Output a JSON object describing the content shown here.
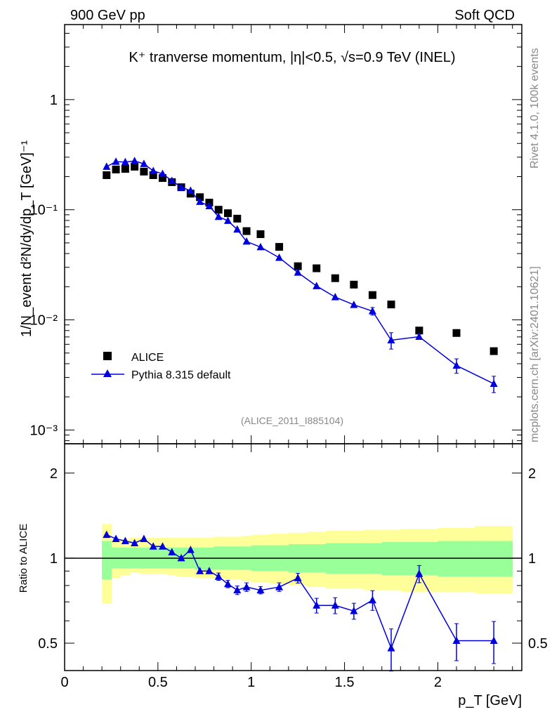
{
  "chart_data": {
    "type": "scatter",
    "header_left": "900 GeV pp",
    "header_right": "Soft QCD",
    "title": "K⁺ tranverse momentum, |η|<0.5, √s=0.9 TeV (INEL)",
    "side_text_top": "Rivet 4.1.0,  100k events",
    "side_text_bottom": "mcplots.cern.ch [arXiv:2401.10621]",
    "reference": "(ALICE_2011_I885104)",
    "ylabel": "1/N_event d²N/dy/dp_T [GeV]⁻¹",
    "ratio_ylabel": "Ratio to ALICE",
    "xlabel": "p_T [GeV]",
    "xlim": [
      0,
      2.45
    ],
    "ylim": [
      0.00075,
      4.8
    ],
    "yscale": "log",
    "ratio_ylim": [
      0.4,
      2.54
    ],
    "ratio_yscale": "log",
    "x_ticks": [
      "0",
      "0.5",
      "1",
      "1.5",
      "2"
    ],
    "x_tick_values": [
      0,
      0.5,
      1,
      1.5,
      2
    ],
    "y_ticks": [
      "1",
      "10⁻¹",
      "10⁻²",
      "10⁻³"
    ],
    "y_tick_values": [
      1,
      0.1,
      0.01,
      0.001
    ],
    "ratio_ticks": [
      "0.5",
      "1",
      "2"
    ],
    "ratio_tick_values": [
      0.5,
      1,
      2
    ],
    "legend_position": "bottom-left",
    "bin_edges": [
      0.2,
      0.25,
      0.3,
      0.35,
      0.4,
      0.45,
      0.5,
      0.55,
      0.6,
      0.65,
      0.7,
      0.75,
      0.8,
      0.85,
      0.9,
      0.95,
      1.0,
      1.1,
      1.2,
      1.3,
      1.4,
      1.5,
      1.6,
      1.7,
      1.8,
      2.0,
      2.2,
      2.4
    ],
    "x": [
      0.225,
      0.275,
      0.325,
      0.375,
      0.425,
      0.475,
      0.525,
      0.575,
      0.625,
      0.675,
      0.725,
      0.775,
      0.825,
      0.875,
      0.925,
      0.975,
      1.05,
      1.15,
      1.25,
      1.35,
      1.45,
      1.55,
      1.65,
      1.75,
      1.9,
      2.1,
      2.3
    ],
    "series": [
      {
        "name": "ALICE",
        "color": "#000000",
        "marker": "square",
        "values": [
          0.206,
          0.232,
          0.235,
          0.246,
          0.222,
          0.206,
          0.194,
          0.178,
          0.16,
          0.14,
          0.13,
          0.116,
          0.1,
          0.093,
          0.083,
          0.064,
          0.06,
          0.046,
          0.0307,
          0.0294,
          0.0239,
          0.0209,
          0.0168,
          0.0138,
          0.008,
          0.0076,
          0.0052
        ]
      },
      {
        "name": "Pythia 8.315 default",
        "color": "#0000dd",
        "marker": "triangle",
        "values": [
          0.246,
          0.273,
          0.271,
          0.277,
          0.261,
          0.225,
          0.212,
          0.183,
          0.16,
          0.149,
          0.118,
          0.108,
          0.0863,
          0.0794,
          0.0662,
          0.0515,
          0.0458,
          0.0367,
          0.0269,
          0.0203,
          0.0161,
          0.0137,
          0.012,
          0.00654,
          0.00703,
          0.00385,
          0.00263
        ],
        "rel_errors": [
          0.015,
          0.015,
          0.015,
          0.015,
          0.015,
          0.015,
          0.015,
          0.02,
          0.02,
          0.02,
          0.025,
          0.025,
          0.03,
          0.03,
          0.035,
          0.035,
          0.03,
          0.035,
          0.04,
          0.06,
          0.065,
          0.065,
          0.08,
          0.17,
          0.07,
          0.15,
          0.17
        ],
        "ratio": [
          1.21,
          1.17,
          1.15,
          1.13,
          1.17,
          1.1,
          1.1,
          1.05,
          1.0,
          1.07,
          0.9,
          0.9,
          0.86,
          0.81,
          0.77,
          0.79,
          0.77,
          0.79,
          0.85,
          0.68,
          0.68,
          0.65,
          0.71,
          0.48,
          0.88,
          0.51,
          0.51
        ]
      }
    ],
    "band_inner": {
      "color": "#99ff99",
      "upper": [
        1.15,
        1.09,
        1.09,
        1.09,
        1.09,
        1.09,
        1.09,
        1.09,
        1.09,
        1.09,
        1.09,
        1.09,
        1.1,
        1.1,
        1.1,
        1.1,
        1.11,
        1.11,
        1.12,
        1.12,
        1.13,
        1.13,
        1.13,
        1.14,
        1.14,
        1.15,
        1.15
      ],
      "lower": [
        0.84,
        0.92,
        0.92,
        0.92,
        0.92,
        0.92,
        0.92,
        0.92,
        0.92,
        0.92,
        0.91,
        0.91,
        0.91,
        0.91,
        0.91,
        0.91,
        0.9,
        0.9,
        0.89,
        0.89,
        0.88,
        0.88,
        0.88,
        0.87,
        0.87,
        0.86,
        0.86
      ]
    },
    "band_outer": {
      "color": "#ffff99",
      "upper": [
        1.32,
        1.17,
        1.17,
        1.18,
        1.18,
        1.18,
        1.18,
        1.18,
        1.18,
        1.18,
        1.18,
        1.18,
        1.19,
        1.19,
        1.19,
        1.2,
        1.21,
        1.22,
        1.23,
        1.24,
        1.25,
        1.25,
        1.26,
        1.26,
        1.27,
        1.28,
        1.3
      ],
      "lower": [
        0.69,
        0.85,
        0.87,
        0.89,
        0.88,
        0.88,
        0.88,
        0.87,
        0.86,
        0.86,
        0.85,
        0.85,
        0.85,
        0.84,
        0.84,
        0.83,
        0.82,
        0.81,
        0.8,
        0.79,
        0.78,
        0.78,
        0.77,
        0.77,
        0.76,
        0.76,
        0.75
      ]
    }
  }
}
